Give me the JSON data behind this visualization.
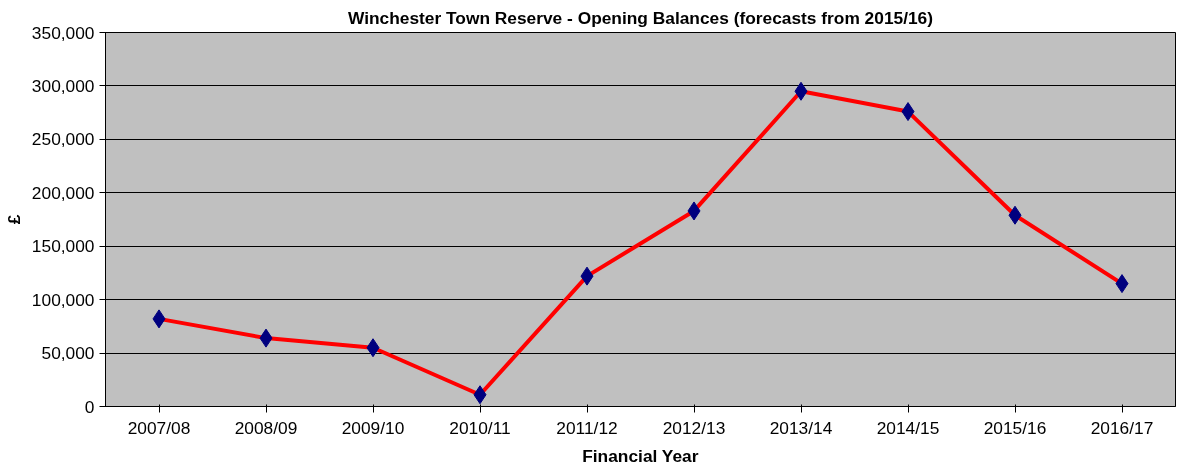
{
  "chart_data": {
    "type": "line",
    "title": "Winchester Town Reserve - Opening Balances (forecasts from 2015/16)",
    "xlabel": "Financial Year",
    "ylabel": "£",
    "categories": [
      "2007/08",
      "2008/09",
      "2009/10",
      "2010/11",
      "2011/12",
      "2012/13",
      "2013/14",
      "2014/15",
      "2015/16",
      "2016/17"
    ],
    "series": [
      {
        "color": "#ff0000",
        "values": [
          82000,
          64000,
          55000,
          11000,
          122000,
          183000,
          295000,
          276000,
          179000,
          115000
        ]
      }
    ],
    "ylim": [
      0,
      350000
    ],
    "yticks": [
      {
        "value": 0,
        "label": "0"
      },
      {
        "value": 50000,
        "label": "50,000"
      },
      {
        "value": 100000,
        "label": "100,000"
      },
      {
        "value": 150000,
        "label": "150,000"
      },
      {
        "value": 200000,
        "label": "200,000"
      },
      {
        "value": 250000,
        "label": "250,000"
      },
      {
        "value": 300000,
        "label": "300,000"
      },
      {
        "value": 350000,
        "label": "350,000"
      }
    ],
    "grid": "y",
    "marker": "diamond",
    "line_style": "solid"
  }
}
